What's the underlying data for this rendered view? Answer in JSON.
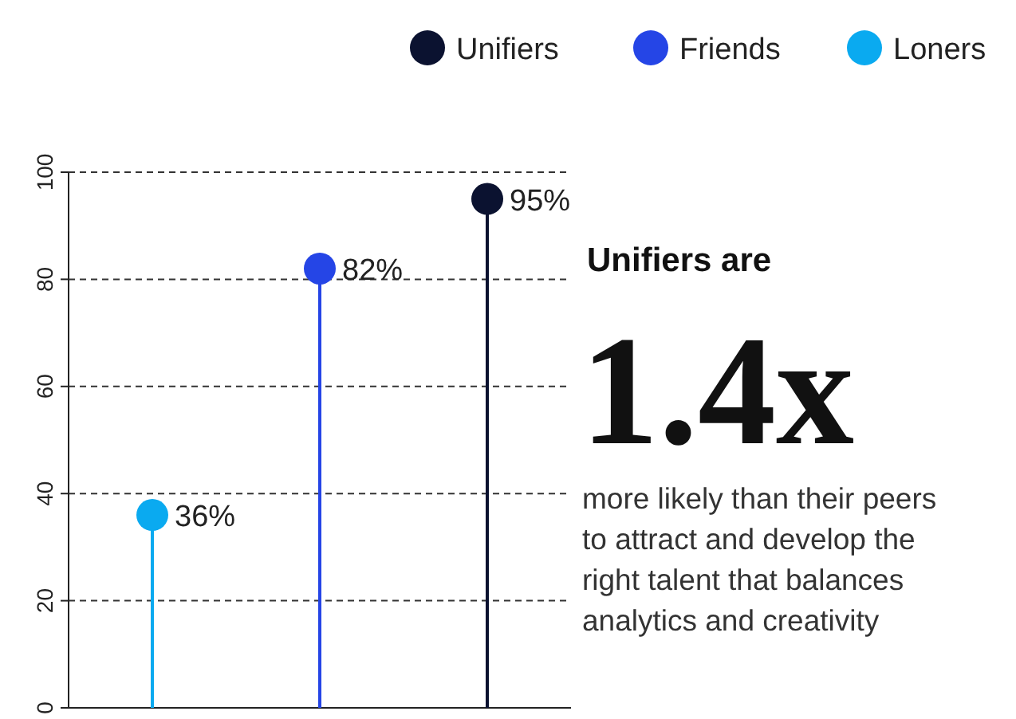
{
  "chart_data": {
    "type": "lollipop",
    "categories": [
      null,
      null,
      null
    ],
    "series": [
      {
        "name": "Unifiers",
        "color": "#0b1230",
        "values": [
          null,
          null,
          95
        ],
        "value_labels": [
          null,
          null,
          "95%"
        ]
      },
      {
        "name": "Friends",
        "color": "#2545e6",
        "values": [
          null,
          82,
          null
        ],
        "value_labels": [
          null,
          "82%",
          null
        ]
      },
      {
        "name": "Loners",
        "color": "#0aaaf0",
        "values": [
          36,
          null,
          null
        ],
        "value_labels": [
          "36%",
          null,
          null
        ]
      }
    ],
    "ylim": [
      0,
      100
    ],
    "yticks": [
      0,
      20,
      40,
      60,
      80,
      100
    ],
    "grid": "y",
    "legend": "top",
    "marker": "circle",
    "annotations": [
      "Unifiers are",
      "1.4x",
      "more likely than their peers to attract and develop the right talent that balances analytics and creativity"
    ]
  }
}
